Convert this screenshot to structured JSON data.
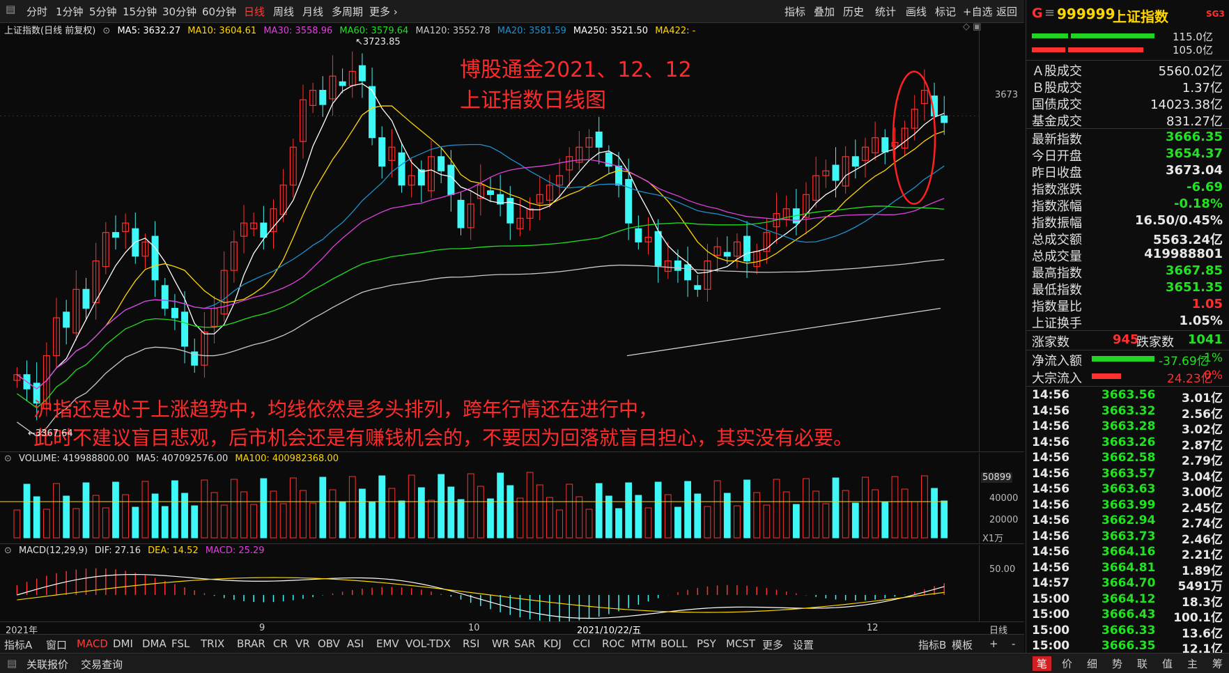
{
  "toolbar": {
    "periods": [
      "分时",
      "1分钟",
      "5分钟",
      "15分钟",
      "30分钟",
      "60分钟",
      "日线",
      "周线",
      "月线",
      "多周期",
      "更多"
    ],
    "active_period": "日线",
    "tools": [
      "指标",
      "叠加",
      "历史",
      "统计",
      "画线",
      "标记",
      "+自选",
      "返回"
    ]
  },
  "main_legend": {
    "title": "上证指数(日线 前复权)",
    "ma5": "MA5: 3632.27",
    "ma10": "MA10: 3604.61",
    "ma30": "MA30: 3558.96",
    "ma60": "MA60: 3579.64",
    "ma120": "MA120: 3552.78",
    "ma20": "MA20: 3581.59",
    "ma250": "MA250: 3521.50",
    "ma422": "MA422: -"
  },
  "colors": {
    "up": "#ff3030",
    "down": "#3ef7f7",
    "ma5": "#ffffff",
    "ma10": "#ffd700",
    "ma30": "#e040e0",
    "ma60": "#20e020",
    "ma120": "#c8c8c8",
    "ma20": "#1e90d0",
    "ma250": "#ffffff"
  },
  "labels": {
    "high_mark": "3723.85",
    "low_mark": "3367.64",
    "price_axis": "3673",
    "annotation_title_1": "博股通金2021、12、12",
    "annotation_title_2": "上证指数日线图",
    "annotation_text_1": "沪指还是处于上涨趋势中，均线依然是多头排列，跨年行情还在进行中，",
    "annotation_text_2": "此时不建议盲目悲观，后市机会还是有赚钱机会的，不要因为回落就盲目担心，其实没有必要。"
  },
  "volume_legend": {
    "volume": "VOLUME: 419988800.00",
    "ma5": "MA5: 407092576.00",
    "ma100": "MA100: 400982368.00",
    "axis": [
      "50899",
      "40000",
      "20000",
      "X1万"
    ]
  },
  "macd_legend": {
    "title": "MACD(12,29,9)",
    "dif": "DIF: 27.16",
    "dea": "DEA: 14.52",
    "macd": "MACD: 25.29",
    "axis": "50.00"
  },
  "time_axis": [
    "2021年",
    "9",
    "10",
    "2021/10/22/五",
    "12",
    "日线"
  ],
  "indicators": [
    "指标A",
    "窗口",
    "MACD",
    "DMI",
    "DMA",
    "FSL",
    "TRIX",
    "BRAR",
    "CR",
    "VR",
    "OBV",
    "ASI",
    "EMV",
    "VOL-TDX",
    "RSI",
    "WR",
    "SAR",
    "KDJ",
    "CCI",
    "ROC",
    "MTM",
    "BOLL",
    "PSY",
    "MCST",
    "更多",
    "设置"
  ],
  "active_indicator": "MACD",
  "indicator_right": [
    "指标B",
    "模板",
    "+",
    "-"
  ],
  "bottom": [
    "关联报价",
    "交易查询"
  ],
  "right": {
    "code": "999999",
    "name": "上证指数",
    "badge": "SG3",
    "g_label": "G",
    "bar1_val": "115.0亿",
    "bar2_val": "105.0亿",
    "market_rows": [
      {
        "label": "Ａ股成交",
        "value": "5560.02亿",
        "color": "white"
      },
      {
        "label": "Ｂ股成交",
        "value": "1.37亿",
        "color": "white"
      },
      {
        "label": "国债成交",
        "value": "14023.38亿",
        "color": "white"
      },
      {
        "label": "基金成交",
        "value": "831.27亿",
        "color": "white"
      }
    ],
    "quote_rows": [
      {
        "label": "最新指数",
        "value": "3666.35",
        "color": "green"
      },
      {
        "label": "今日开盘",
        "value": "3654.37",
        "color": "green"
      },
      {
        "label": "昨日收盘",
        "value": "3673.04",
        "color": "white"
      },
      {
        "label": "指数涨跌",
        "value": "-6.69",
        "color": "green"
      },
      {
        "label": "指数涨幅",
        "value": "-0.18%",
        "color": "green"
      },
      {
        "label": "指数振幅",
        "value": "16.50/0.45%",
        "color": "white"
      },
      {
        "label": "总成交额",
        "value": "5563.24亿",
        "color": "white"
      },
      {
        "label": "总成交量",
        "value": "419988801",
        "color": "white"
      },
      {
        "label": "最高指数",
        "value": "3667.85",
        "color": "green"
      },
      {
        "label": "最低指数",
        "value": "3651.35",
        "color": "green"
      },
      {
        "label": "指数量比",
        "value": "1.05",
        "color": "red"
      },
      {
        "label": "上证换手",
        "value": "1.05%",
        "color": "white"
      }
    ],
    "up_label": "涨家数",
    "up_count": "945",
    "down_label": "跌家数",
    "down_count": "1041",
    "netflow_label": "净流入额",
    "netflow_value": "-37.69亿",
    "netflow_pct": "-1%",
    "block_label": "大宗流入",
    "block_value": "24.23亿",
    "block_pct": "0%",
    "ticks": [
      {
        "t": "14:56",
        "p": "3663.56",
        "v": "3.01亿"
      },
      {
        "t": "14:56",
        "p": "3663.32",
        "v": "2.56亿"
      },
      {
        "t": "14:56",
        "p": "3663.28",
        "v": "3.02亿"
      },
      {
        "t": "14:56",
        "p": "3663.26",
        "v": "2.87亿"
      },
      {
        "t": "14:56",
        "p": "3662.58",
        "v": "2.79亿"
      },
      {
        "t": "14:56",
        "p": "3663.57",
        "v": "3.04亿"
      },
      {
        "t": "14:56",
        "p": "3663.63",
        "v": "3.00亿"
      },
      {
        "t": "14:56",
        "p": "3663.99",
        "v": "2.45亿"
      },
      {
        "t": "14:56",
        "p": "3662.94",
        "v": "2.74亿"
      },
      {
        "t": "14:56",
        "p": "3663.73",
        "v": "2.46亿"
      },
      {
        "t": "14:56",
        "p": "3664.16",
        "v": "2.21亿"
      },
      {
        "t": "14:56",
        "p": "3664.81",
        "v": "1.89亿"
      },
      {
        "t": "14:57",
        "p": "3664.70",
        "v": "5491万"
      },
      {
        "t": "15:00",
        "p": "3664.12",
        "v": "18.3亿"
      },
      {
        "t": "15:00",
        "p": "3666.43",
        "v": "100.1亿"
      },
      {
        "t": "15:00",
        "p": "3666.33",
        "v": "13.6亿"
      },
      {
        "t": "15:00",
        "p": "3666.35",
        "v": "12.1亿"
      }
    ],
    "tabs": [
      "笔",
      "价",
      "细",
      "势",
      "联",
      "值",
      "主",
      "筹"
    ]
  }
}
